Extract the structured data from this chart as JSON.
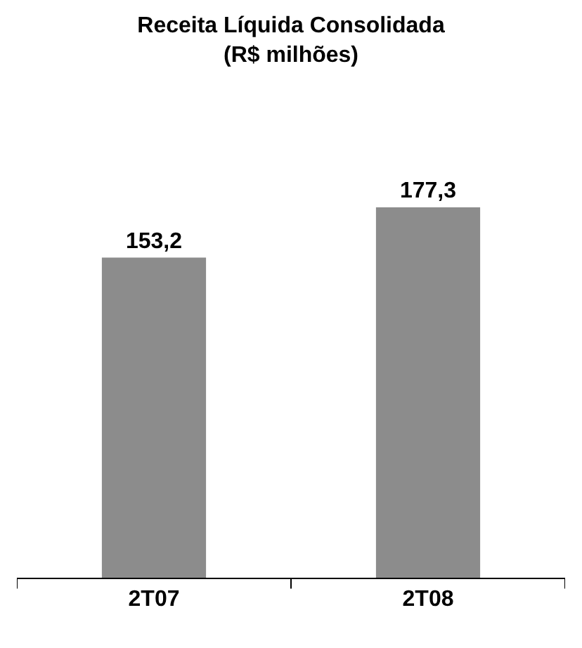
{
  "chart_data": {
    "type": "bar",
    "title": "Receita Líquida Consolidada\n(R$ milhões)",
    "categories": [
      "2T07",
      "2T08"
    ],
    "values": [
      153.2,
      177.3
    ],
    "value_labels": [
      "153,2",
      "177,3"
    ],
    "color": "#8c8c8c"
  }
}
